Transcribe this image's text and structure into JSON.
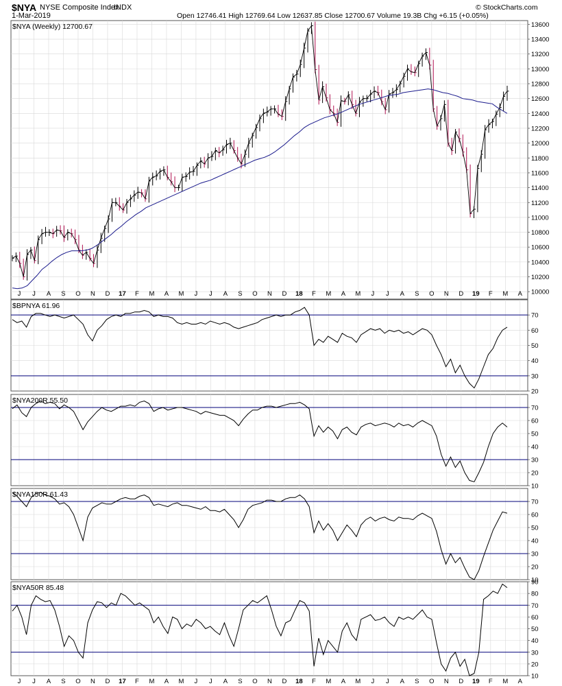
{
  "header": {
    "symbol": "$NYA",
    "name": "NYSE Composite Index",
    "exchange": "INDX",
    "date": "1-Mar-2019",
    "ohlc": "Open 12746.41  High 12769.64  Low 12637.85  Close 12700.67  Volume 19.3B  Chg +6.15 (+0.05%)",
    "brand": "© StockCharts.com"
  },
  "colors": {
    "up_bar": "#000000",
    "down_bar": "#b01050",
    "moving_average": "#1a1a8c",
    "reference_line": "#00007a",
    "grid": "#d8d8d8"
  },
  "chart_data": [
    {
      "type": "line",
      "title": "$NYA (Weekly) 12700.67",
      "overlay": "moving average",
      "x_ticks": [
        "J",
        "J",
        "A",
        "S",
        "O",
        "N",
        "D",
        "17",
        "F",
        "M",
        "A",
        "M",
        "J",
        "J",
        "A",
        "S",
        "O",
        "N",
        "D",
        "18",
        "F",
        "M",
        "A",
        "M",
        "J",
        "J",
        "A",
        "S",
        "O",
        "N",
        "D",
        "19",
        "F",
        "M",
        "A"
      ],
      "ylim": [
        9900,
        13650
      ],
      "y_ticks": [
        10000,
        10200,
        10400,
        10600,
        10800,
        11000,
        11200,
        11400,
        11600,
        11800,
        12000,
        12200,
        12400,
        12600,
        12800,
        13000,
        13200,
        13400,
        13600
      ],
      "series": [
        {
          "values": [
            10450,
            10480,
            10380,
            10200,
            10500,
            10560,
            10420,
            10700,
            10780,
            10800,
            10800,
            10780,
            10830,
            10820,
            10730,
            10800,
            10780,
            10700,
            10560,
            10490,
            10530,
            10450,
            10380,
            10560,
            10720,
            10850,
            10980,
            11200,
            11200,
            11150,
            11100,
            11200,
            11250,
            11300,
            11340,
            11330,
            11250,
            11490,
            11540,
            11560,
            11620,
            11640,
            11540,
            11480,
            11400,
            11400,
            11540,
            11550,
            11610,
            11620,
            11700,
            11760,
            11720,
            11800,
            11820,
            11900,
            11870,
            11910,
            11980,
            12000,
            11900,
            11800,
            11720,
            11850,
            12000,
            12100,
            12210,
            12330,
            12400,
            12420,
            12460,
            12460,
            12390,
            12360,
            12560,
            12730,
            12890,
            12930,
            13060,
            13280,
            13510,
            13580,
            12990,
            12580,
            12760,
            12610,
            12450,
            12400,
            12280,
            12570,
            12560,
            12650,
            12520,
            12400,
            12550,
            12600,
            12600,
            12660,
            12700,
            12680,
            12560,
            12450,
            12660,
            12680,
            12720,
            12800,
            12900,
            13000,
            12960,
            12950,
            13070,
            13170,
            13220,
            13050,
            12460,
            12230,
            12330,
            12520,
            12000,
            11900,
            12150,
            12060,
            11880,
            11640,
            11050,
            11110,
            11660,
            11850,
            12180,
            12250,
            12290,
            12390,
            12480,
            12630,
            12700
          ]
        },
        {
          "values": [
            10050,
            10040,
            10050,
            10080,
            10150,
            10220,
            10300,
            10350,
            10410,
            10460,
            10500,
            10530,
            10550,
            10550,
            10550,
            10560,
            10580,
            10620,
            10670,
            10720,
            10770,
            10830,
            10880,
            10940,
            10990,
            11040,
            11080,
            11130,
            11160,
            11190,
            11220,
            11250,
            11280,
            11310,
            11340,
            11370,
            11400,
            11430,
            11460,
            11480,
            11500,
            11530,
            11560,
            11590,
            11620,
            11650,
            11680,
            11710,
            11740,
            11770,
            11790,
            11810,
            11840,
            11880,
            11930,
            11980,
            12040,
            12100,
            12150,
            12210,
            12250,
            12280,
            12310,
            12340,
            12360,
            12380,
            12400,
            12430,
            12460,
            12490,
            12520,
            12540,
            12560,
            12580,
            12600,
            12620,
            12640,
            12650,
            12660,
            12680,
            12690,
            12700,
            12710,
            12720,
            12730,
            12720,
            12700,
            12680,
            12670,
            12650,
            12630,
            12600,
            12590,
            12580,
            12560,
            12550,
            12540,
            12530,
            12480,
            12440,
            12400
          ]
        }
      ]
    },
    {
      "type": "line",
      "title": "$BPNYA 61.96",
      "ylim": [
        20,
        80
      ],
      "y_ticks": [
        20,
        30,
        40,
        50,
        60,
        70
      ],
      "reference_lines": [
        30,
        70
      ],
      "values": [
        67,
        65,
        66,
        62,
        69,
        71,
        71,
        70,
        69,
        70,
        69,
        68,
        69,
        70,
        67,
        64,
        57,
        53,
        60,
        63,
        67,
        69,
        70,
        69,
        71,
        71,
        72,
        72,
        73,
        72,
        69,
        70,
        69,
        69,
        68,
        65,
        64,
        65,
        64,
        64,
        65,
        64,
        66,
        65,
        64,
        65,
        64,
        62,
        61,
        62,
        63,
        64,
        65,
        67,
        68,
        69,
        70,
        69,
        70,
        70,
        72,
        73,
        75,
        70,
        50,
        54,
        52,
        56,
        54,
        52,
        58,
        56,
        55,
        52,
        57,
        59,
        61,
        60,
        61,
        58,
        60,
        59,
        60,
        58,
        59,
        57,
        59,
        61,
        60,
        57,
        50,
        44,
        36,
        41,
        32,
        37,
        30,
        25,
        22,
        28,
        36,
        44,
        48,
        55,
        60,
        62
      ]
    },
    {
      "type": "line",
      "title": "$NYA200R 55.50",
      "ylim": [
        10,
        80
      ],
      "y_ticks": [
        10,
        20,
        30,
        40,
        50,
        60,
        70
      ],
      "reference_lines": [
        30,
        70
      ],
      "values": [
        69,
        72,
        66,
        63,
        70,
        73,
        75,
        73,
        74,
        73,
        69,
        72,
        70,
        67,
        60,
        53,
        59,
        63,
        67,
        70,
        68,
        67,
        69,
        71,
        71,
        72,
        71,
        74,
        75,
        73,
        67,
        69,
        70,
        68,
        69,
        70,
        70,
        69,
        68,
        67,
        65,
        67,
        66,
        65,
        64,
        64,
        62,
        60,
        56,
        61,
        65,
        68,
        68,
        70,
        71,
        71,
        70,
        71,
        72,
        73,
        73,
        74,
        72,
        69,
        48,
        56,
        51,
        55,
        52,
        46,
        53,
        55,
        51,
        49,
        55,
        57,
        58,
        56,
        57,
        58,
        57,
        55,
        58,
        56,
        57,
        55,
        58,
        60,
        58,
        56,
        48,
        34,
        25,
        32,
        24,
        29,
        20,
        14,
        13,
        20,
        28,
        40,
        50,
        55,
        58,
        55
      ]
    },
    {
      "type": "line",
      "title": "$NYA150R 61.43",
      "ylim": [
        10,
        80
      ],
      "y_ticks": [
        10,
        20,
        30,
        40,
        50,
        60,
        70
      ],
      "reference_lines": [
        30,
        70
      ],
      "values": [
        77,
        74,
        70,
        66,
        73,
        76,
        77,
        75,
        74,
        72,
        68,
        69,
        66,
        60,
        50,
        40,
        58,
        65,
        67,
        69,
        68,
        68,
        70,
        72,
        73,
        72,
        72,
        74,
        75,
        73,
        67,
        68,
        67,
        66,
        68,
        69,
        67,
        67,
        66,
        65,
        64,
        66,
        63,
        63,
        62,
        64,
        60,
        56,
        50,
        56,
        64,
        67,
        68,
        69,
        71,
        71,
        70,
        70,
        72,
        73,
        73,
        75,
        72,
        66,
        46,
        55,
        48,
        53,
        48,
        40,
        46,
        52,
        48,
        43,
        52,
        56,
        58,
        55,
        57,
        58,
        56,
        55,
        58,
        57,
        57,
        56,
        59,
        61,
        59,
        57,
        47,
        33,
        22,
        30,
        23,
        27,
        19,
        12,
        10,
        17,
        28,
        38,
        48,
        55,
        62,
        61
      ]
    },
    {
      "type": "line",
      "title": "$NYA50R 85.48",
      "ylim": [
        10,
        90
      ],
      "y_ticks": [
        10,
        20,
        30,
        40,
        50,
        60,
        70,
        80,
        90
      ],
      "reference_lines": [
        30,
        70
      ],
      "values": [
        65,
        70,
        60,
        45,
        70,
        78,
        75,
        73,
        74,
        66,
        52,
        35,
        44,
        40,
        30,
        25,
        55,
        66,
        73,
        72,
        68,
        72,
        70,
        80,
        78,
        74,
        70,
        72,
        69,
        66,
        55,
        60,
        52,
        46,
        60,
        58,
        50,
        54,
        52,
        58,
        55,
        50,
        52,
        48,
        45,
        55,
        44,
        35,
        50,
        66,
        70,
        74,
        72,
        75,
        78,
        66,
        52,
        44,
        55,
        57,
        66,
        74,
        72,
        65,
        18,
        42,
        28,
        40,
        35,
        30,
        48,
        55,
        45,
        40,
        58,
        60,
        62,
        57,
        58,
        60,
        55,
        52,
        60,
        58,
        60,
        58,
        62,
        66,
        60,
        58,
        38,
        20,
        14,
        25,
        30,
        18,
        24,
        10,
        12,
        30,
        75,
        78,
        82,
        80,
        88,
        85
      ]
    }
  ]
}
